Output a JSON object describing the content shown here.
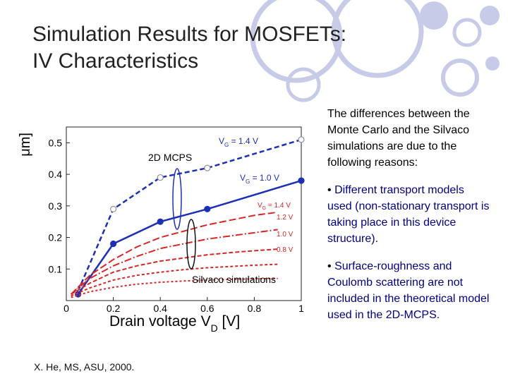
{
  "slide": {
    "title_line1": "Simulation Results for MOSFETs:",
    "title_line2": "IV Characteristics",
    "intro": "The differences between the Monte Carlo and the Silvaco simulations are due to the following reasons:",
    "bullets": [
      "Different transport models used  (non-stationary transport is taking place in this device structure).",
      "Surface-roughness and Coulomb scattering are not included in the theoretical model used in the 2D-MCPS."
    ],
    "bullet_glyph": "•",
    "footnote": "X. He, MS, ASU, 2000.",
    "decor_color": "#c8cbe8"
  },
  "chart_data": {
    "type": "line",
    "xlabel": "Drain voltage V",
    "xlabel_sub": "D",
    "xlabel_unit": " [V]",
    "ylabel_unit": "μm]",
    "xlim": [
      0,
      1.0
    ],
    "ylim": [
      0,
      0.55
    ],
    "x_ticks": [
      "0",
      "0.2",
      "0.4",
      "0.6",
      "0.8",
      "1"
    ],
    "y_ticks": [
      "0.1",
      "0.2",
      "0.3",
      "0.4",
      "0.5"
    ],
    "labels": {
      "mcps": "2D MCPS",
      "silvaco": "Silvaco simulations",
      "vg14_main": "V",
      "vg14_sub": "G",
      "vg14_val": " = 1.4 V",
      "vg10_main": "V",
      "vg10_sub": "G",
      "vg10_val": " = 1.0 V",
      "s14_main": "V",
      "s14_sub": "G",
      "s14_val": " = 1.4 V",
      "s12": "1.2 V",
      "s10": "1.0 V",
      "s08": "0.8 V"
    },
    "series": [
      {
        "style": "mc-open",
        "color": "#1d2fb5",
        "x": [
          0.05,
          0.2,
          0.4,
          0.6,
          1.0
        ],
        "y": [
          0.03,
          0.29,
          0.39,
          0.42,
          0.51
        ]
      },
      {
        "style": "mc-filled",
        "color": "#1d2fb5",
        "x": [
          0.05,
          0.2,
          0.4,
          0.6,
          1.0
        ],
        "y": [
          0.02,
          0.18,
          0.25,
          0.29,
          0.38
        ]
      },
      {
        "style": "silvaco",
        "color": "#d42828",
        "dash": "10 4",
        "x": [
          0.02,
          0.1,
          0.2,
          0.3,
          0.4,
          0.5,
          0.6,
          0.7,
          0.8,
          0.9
        ],
        "y": [
          0.02,
          0.08,
          0.13,
          0.17,
          0.2,
          0.22,
          0.24,
          0.255,
          0.27,
          0.28
        ]
      },
      {
        "style": "silvaco",
        "color": "#d42828",
        "dash": "10 3 2 3",
        "x": [
          0.02,
          0.1,
          0.2,
          0.3,
          0.4,
          0.5,
          0.6,
          0.7,
          0.8,
          0.9
        ],
        "y": [
          0.02,
          0.07,
          0.11,
          0.14,
          0.165,
          0.18,
          0.195,
          0.205,
          0.215,
          0.225
        ]
      },
      {
        "style": "silvaco",
        "color": "#d42828",
        "dash": "6 3",
        "x": [
          0.02,
          0.1,
          0.2,
          0.3,
          0.4,
          0.5,
          0.6,
          0.7,
          0.8,
          0.9
        ],
        "y": [
          0.02,
          0.055,
          0.09,
          0.11,
          0.125,
          0.135,
          0.145,
          0.152,
          0.158,
          0.163
        ]
      },
      {
        "style": "silvaco",
        "color": "#d42828",
        "dash": "4 3",
        "x": [
          0.02,
          0.1,
          0.2,
          0.3,
          0.4,
          0.5,
          0.6,
          0.7,
          0.8,
          0.9
        ],
        "y": [
          0.015,
          0.04,
          0.065,
          0.08,
          0.09,
          0.098,
          0.104,
          0.108,
          0.112,
          0.115
        ]
      },
      {
        "style": "silvaco",
        "color": "#d42828",
        "dash": "3 3",
        "x": [
          0.02,
          0.1,
          0.2,
          0.3,
          0.4,
          0.5,
          0.6,
          0.7,
          0.8,
          0.9
        ],
        "y": [
          0.01,
          0.028,
          0.042,
          0.052,
          0.058,
          0.062,
          0.065,
          0.067,
          0.069,
          0.07
        ]
      }
    ]
  }
}
